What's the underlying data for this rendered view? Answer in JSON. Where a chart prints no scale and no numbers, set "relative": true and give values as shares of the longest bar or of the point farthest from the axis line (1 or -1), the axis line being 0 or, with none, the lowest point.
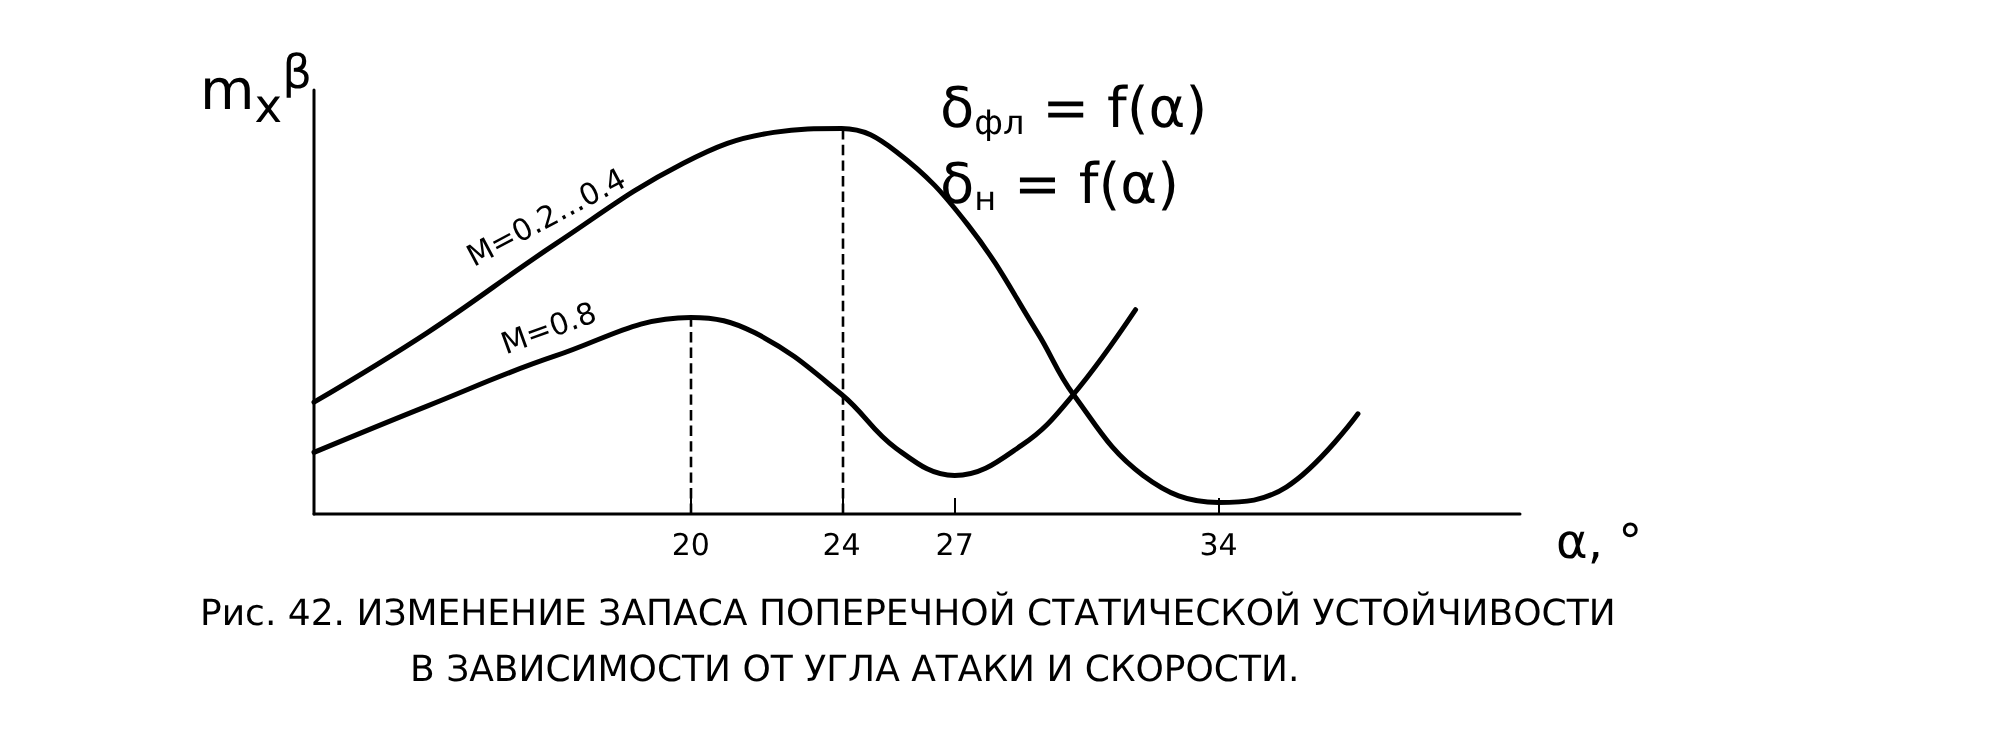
{
  "chart_data": {
    "type": "line",
    "relative": true,
    "ylabel": "m$_{x}$$^{β}$",
    "xlabel": "α, °",
    "xlim": [
      10,
      42
    ],
    "xticks": [
      20,
      24,
      27,
      34
    ],
    "grid": false,
    "marker": "none",
    "line_style": "solid",
    "series": [
      {
        "name": "M=0.2...0.4",
        "color": "#000000",
        "x": [
          10,
          13.0,
          16.4,
          19.8,
          22.2,
          24,
          25.45,
          27.35,
          29.2,
          30.15,
          32.0,
          34,
          35.8,
          37.7
        ],
        "values": [
          0.29,
          0.47,
          0.7,
          0.91,
          0.99,
          1.0,
          0.94,
          0.75,
          0.47,
          0.31,
          0.1,
          0.03,
          0.07,
          0.26
        ]
      },
      {
        "name": "M=0.8",
        "color": "#000000",
        "x": [
          10,
          13.0,
          16.4,
          20,
          21.7,
          24,
          25.45,
          27,
          28.8,
          30.15,
          31.8
        ],
        "values": [
          0.16,
          0.28,
          0.41,
          0.51,
          0.47,
          0.31,
          0.17,
          0.1,
          0.18,
          0.31,
          0.53
        ]
      }
    ],
    "ref_lines": [
      {
        "axis": "x",
        "value": 20,
        "line_style": "dashed",
        "color": "#000000"
      },
      {
        "axis": "x",
        "value": 24,
        "line_style": "dashed",
        "color": "#000000"
      }
    ],
    "annotations": [
      "δ$_{фл}$ = f(α)",
      "δ$_{н}$ = f(α)",
      "Рис. 42. ИЗМЕНЕНИЕ ЗАПАСА ПОПЕРЕЧНОЙ СТАТИЧЕСКОЙ УСТОЙЧИВОСТИ",
      "В ЗАВИСИМОСТИ ОТ УГЛА АТАКИ И СКОРОСТИ."
    ]
  }
}
